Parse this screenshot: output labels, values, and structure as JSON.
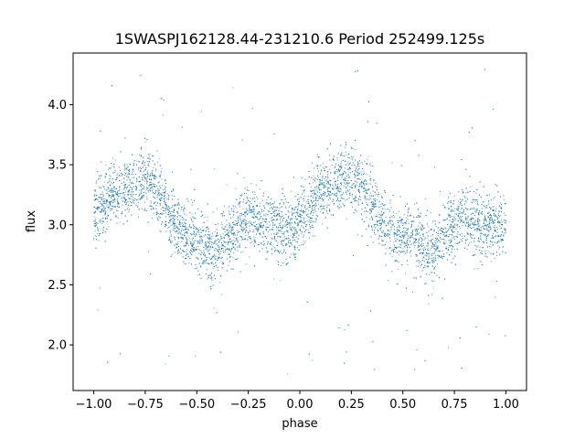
{
  "chart_data": {
    "type": "scatter",
    "title": "1SWASPJ162128.44-231210.6 Period 252499.125s",
    "xlabel": "phase",
    "ylabel": "flux",
    "xlim": [
      -1.1,
      1.1
    ],
    "ylim": [
      1.62,
      4.43
    ],
    "xticks": [
      -1.0,
      -0.75,
      -0.5,
      -0.25,
      0.0,
      0.25,
      0.5,
      0.75,
      1.0
    ],
    "xtick_labels": [
      "−1.00",
      "−0.75",
      "−0.50",
      "−0.25",
      "0.00",
      "0.25",
      "0.50",
      "0.75",
      "1.00"
    ],
    "yticks": [
      2.0,
      2.5,
      3.0,
      3.5,
      4.0
    ],
    "ytick_labels": [
      "2.0",
      "2.5",
      "3.0",
      "3.5",
      "4.0"
    ],
    "grid": false,
    "marker_color": "#1f77b4",
    "light_curve": {
      "phase": [
        -1.0,
        -0.95,
        -0.9,
        -0.85,
        -0.8,
        -0.75,
        -0.7,
        -0.65,
        -0.6,
        -0.55,
        -0.5,
        -0.45,
        -0.4,
        -0.35,
        -0.3,
        -0.25,
        -0.2,
        -0.15,
        -0.1,
        -0.05,
        0.0,
        0.05,
        0.1,
        0.15,
        0.2,
        0.25,
        0.3,
        0.35,
        0.4,
        0.45,
        0.5,
        0.55,
        0.6,
        0.65,
        0.7,
        0.75,
        0.8,
        0.85,
        0.9,
        0.95,
        1.0
      ],
      "flux": [
        3.08,
        3.18,
        3.28,
        3.28,
        3.32,
        3.4,
        3.3,
        3.15,
        3.02,
        2.9,
        2.85,
        2.82,
        2.78,
        2.9,
        3.0,
        3.05,
        3.02,
        3.0,
        2.98,
        2.96,
        3.0,
        3.1,
        3.28,
        3.32,
        3.35,
        3.42,
        3.35,
        3.22,
        3.02,
        2.88,
        2.9,
        2.88,
        2.8,
        2.75,
        2.92,
        3.02,
        3.05,
        3.0,
        2.98,
        2.98,
        3.0
      ],
      "scatter_sigma": 0.13,
      "outlier_range": [
        1.75,
        4.3
      ],
      "n_points": 9000
    }
  }
}
